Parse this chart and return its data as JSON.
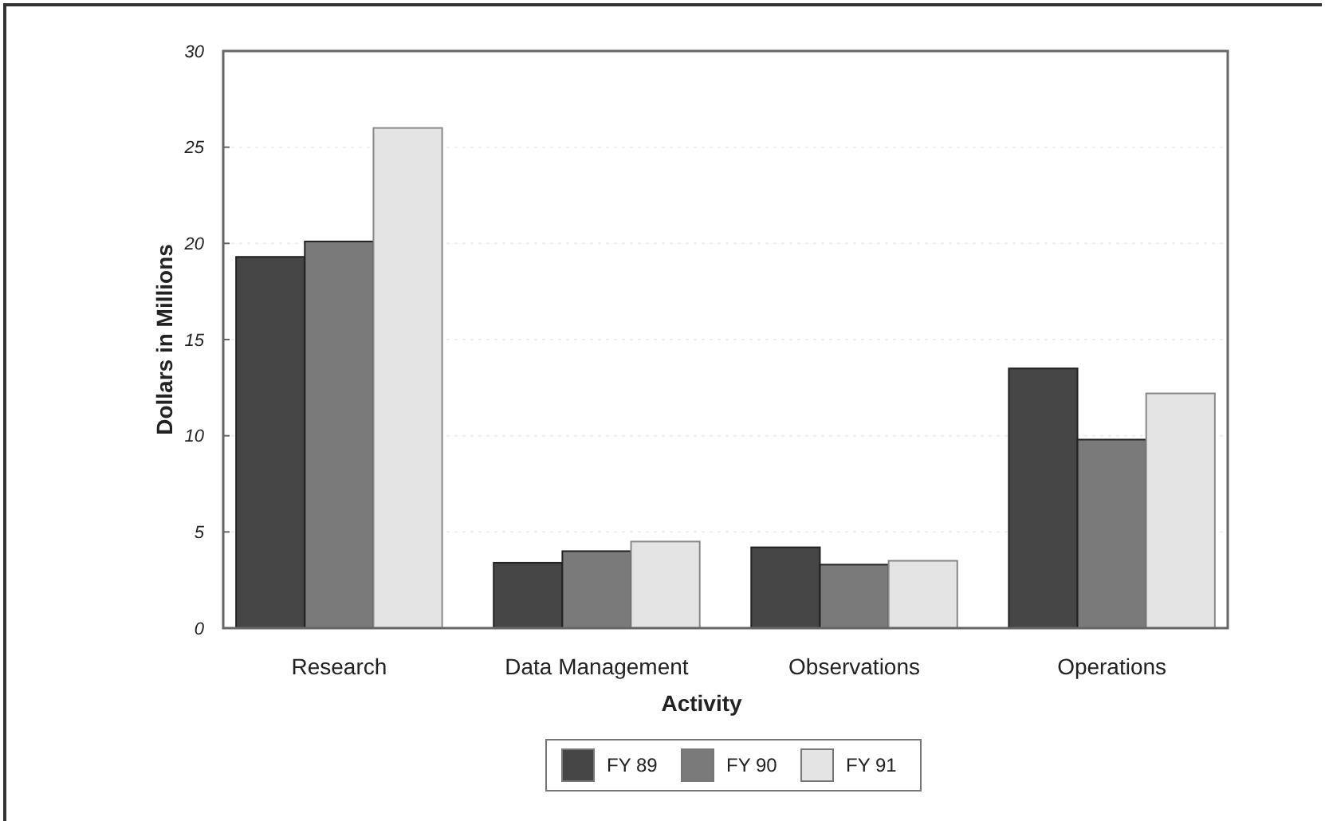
{
  "chart_data": {
    "type": "bar",
    "xlabel": "Activity",
    "ylabel": "Dollars in Millions",
    "categories": [
      "Research",
      "Data Management",
      "Observations",
      "Operations"
    ],
    "series": [
      {
        "name": "FY 89",
        "color": "#454545",
        "values": [
          19.3,
          3.4,
          4.2,
          13.5
        ]
      },
      {
        "name": "FY 90",
        "color": "#7a7a7a",
        "values": [
          20.1,
          4.0,
          3.3,
          9.8
        ]
      },
      {
        "name": "FY 91",
        "color": "#e4e4e4",
        "values": [
          26,
          4.5,
          3.5,
          12.2
        ]
      }
    ],
    "ylim": [
      0,
      30
    ],
    "yticks": [
      0,
      5,
      10,
      15,
      20,
      25,
      30
    ],
    "grid": "y",
    "legend": "bottom"
  }
}
